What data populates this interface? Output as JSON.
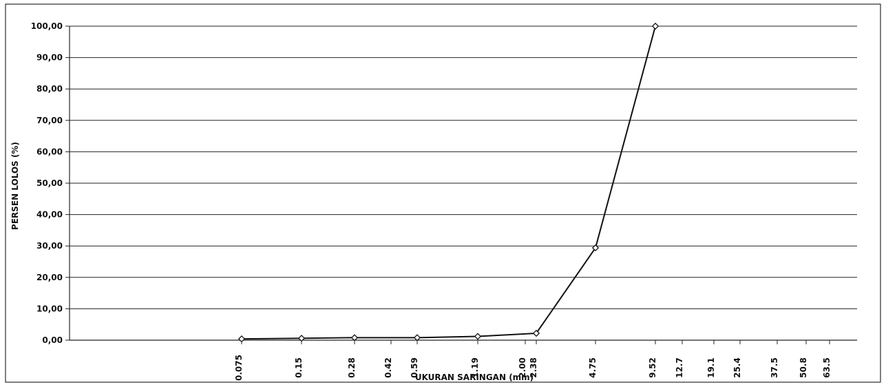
{
  "chart_data": {
    "type": "line",
    "title": "",
    "xlabel": "UKURAN SARINGAN (mm)",
    "ylabel": "PERSEN LOLOS (%)",
    "ylim": [
      0,
      100
    ],
    "grid": true,
    "legend": "none",
    "series_color": "#111111",
    "y_ticks": [
      "0,00",
      "10,00",
      "20,00",
      "30,00",
      "40,00",
      "50,00",
      "60,00",
      "70,00",
      "80,00",
      "90,00",
      "100,00"
    ],
    "x_ticks": [
      "0.075",
      "0.15",
      "0.28",
      "0.42",
      "0.59",
      "1.19",
      "2.00",
      "2.38",
      "4.75",
      "9.52",
      "12.7",
      "19.1",
      "25.4",
      "37.5",
      "50.8",
      "63.5"
    ],
    "series": [
      {
        "x": [
          0.075,
          0.15,
          0.28,
          0.59,
          1.19,
          2.38,
          4.75,
          9.52
        ],
        "y": [
          0.4,
          0.6,
          0.8,
          0.8,
          1.2,
          2.2,
          29.4,
          100
        ]
      }
    ]
  }
}
